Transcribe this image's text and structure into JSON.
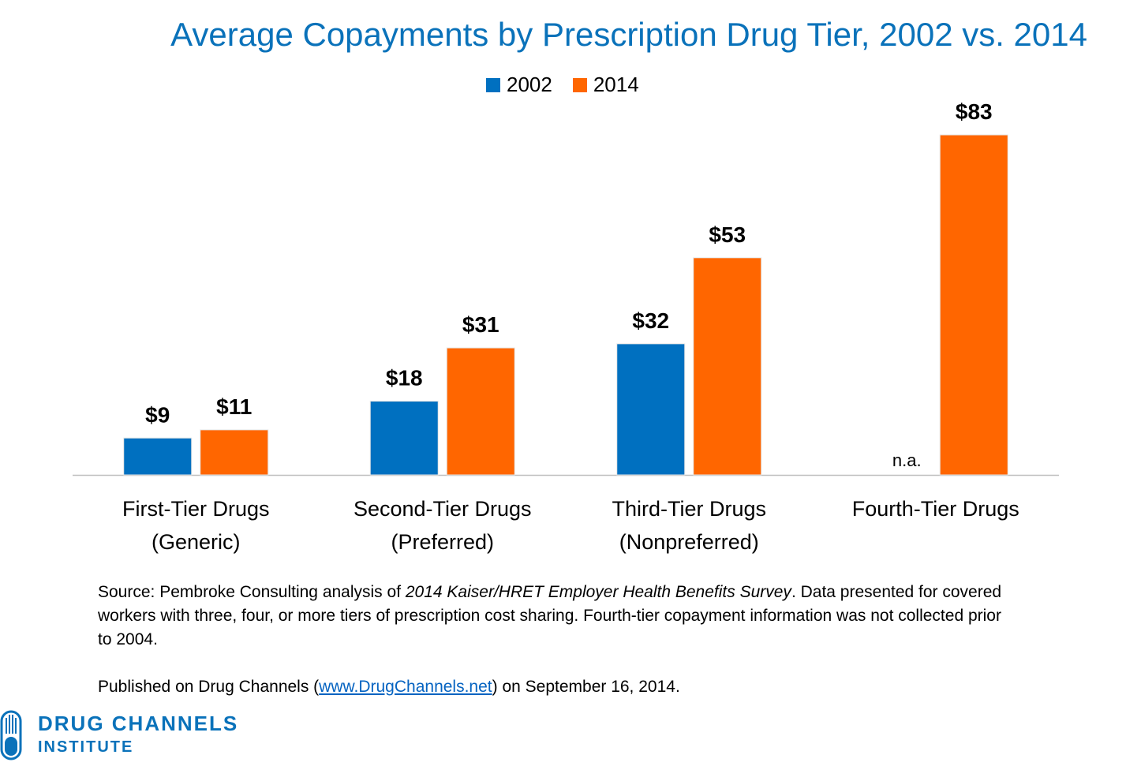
{
  "title": "Average Copayments by Prescription Drug Tier, 2002 vs. 2014",
  "legend": [
    {
      "label": "2002",
      "color": "#0070c0"
    },
    {
      "label": "2014",
      "color": "#ff6600"
    }
  ],
  "chart_data": {
    "type": "bar",
    "title": "Average Copayments by Prescription Drug Tier, 2002 vs. 2014",
    "categories": [
      [
        "First-Tier Drugs",
        "(Generic)"
      ],
      [
        "Second-Tier Drugs",
        "(Preferred)"
      ],
      [
        "Third-Tier Drugs",
        "(Nonpreferred)"
      ],
      [
        "Fourth-Tier Drugs"
      ]
    ],
    "series": [
      {
        "name": "2002",
        "values": [
          9,
          18,
          32,
          null
        ],
        "labels": [
          "$9",
          "$18",
          "$32",
          "n.a."
        ],
        "color": "#0070c0"
      },
      {
        "name": "2014",
        "values": [
          11,
          31,
          53,
          83
        ],
        "labels": [
          "$11",
          "$31",
          "$53",
          "$83"
        ],
        "color": "#ff6600"
      }
    ],
    "ylim": [
      0,
      90
    ],
    "grid": false,
    "legend_position": "top-center"
  },
  "source": {
    "prefix": "Source: Pembroke Consulting analysis of ",
    "italic": "2014 Kaiser/HRET Employer Health Benefits Survey",
    "suffix": ". Data presented for covered workers with three, four, or more tiers of prescription cost sharing. Fourth-tier copayment information was not collected prior to 2004."
  },
  "published": {
    "prefix": "Published on Drug Channels (",
    "link": "www.DrugChannels.net",
    "suffix": ") on September 16, 2014."
  },
  "logo": {
    "line1": "DRUG CHANNELS",
    "line2": "INSTITUTE"
  }
}
